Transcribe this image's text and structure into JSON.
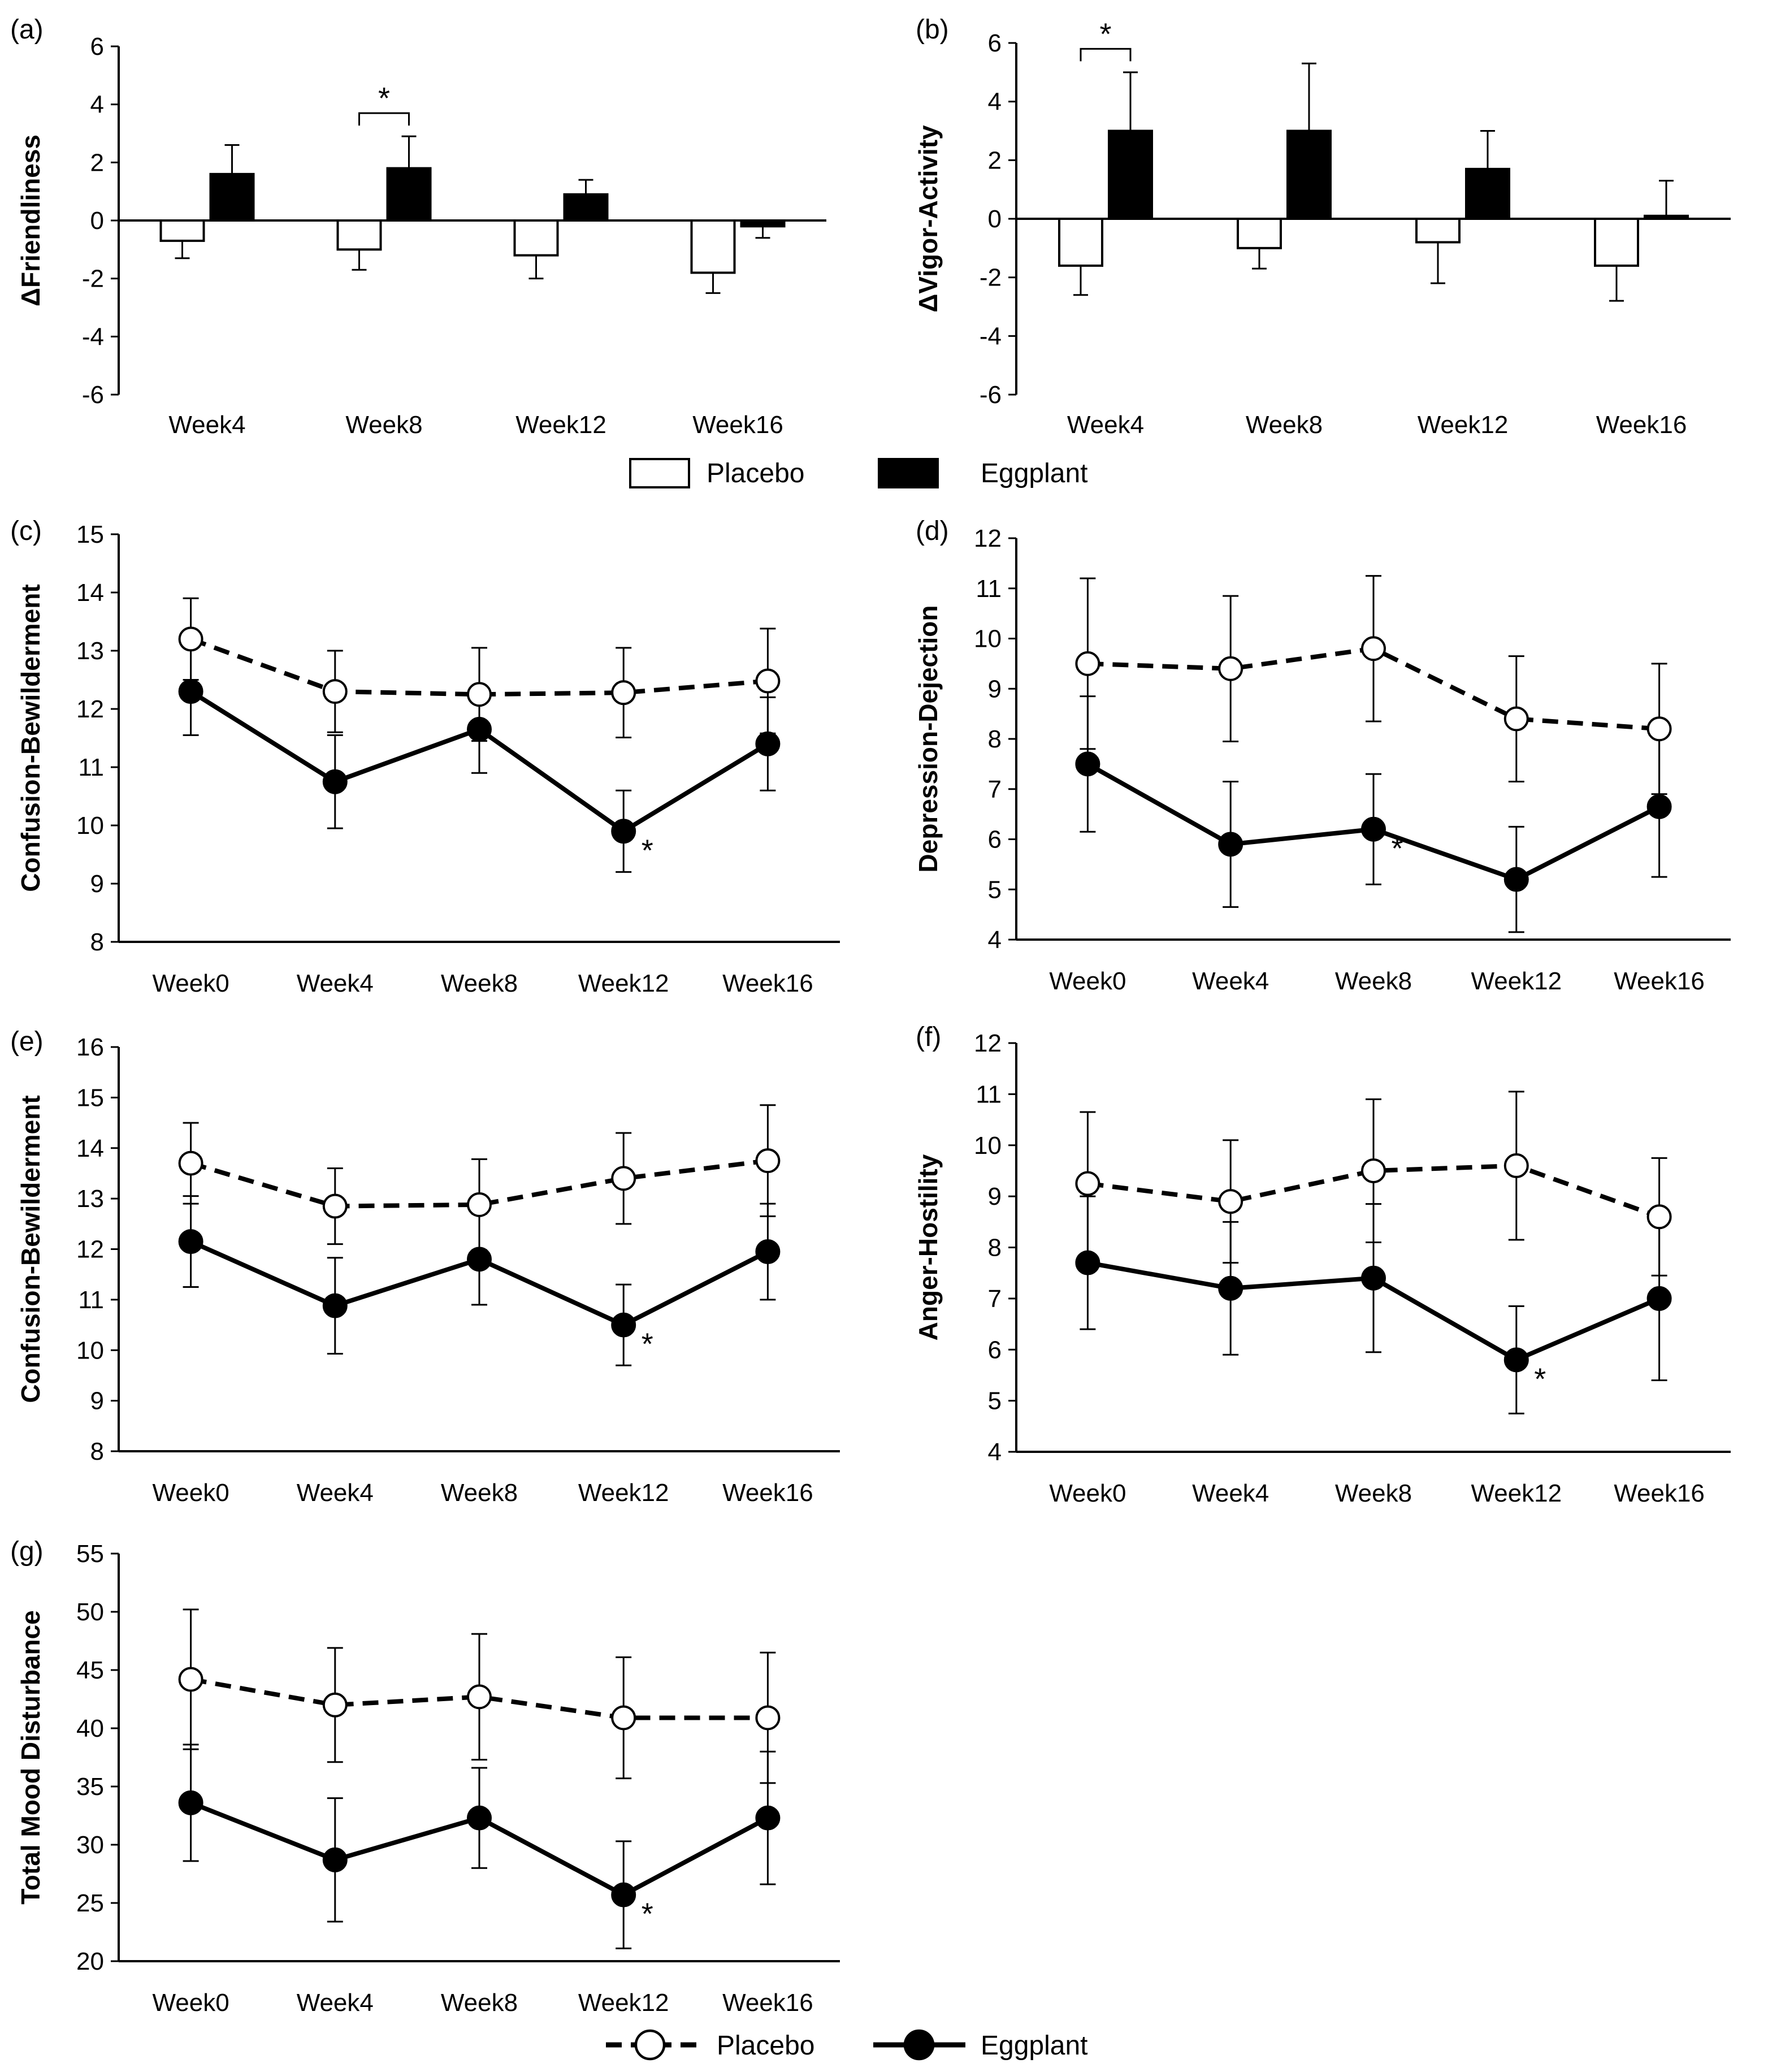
{
  "legend_bar": {
    "placebo": "Placebo",
    "eggplant": "Eggplant"
  },
  "legend_line": {
    "placebo": "Placebo",
    "eggplant": "Eggplant"
  },
  "chart_data": [
    {
      "id": "a",
      "panel_label": "(a)",
      "type": "bar",
      "ylabel": "ΔFriendliness",
      "categories": [
        "Week4",
        "Week8",
        "Week12",
        "Week16"
      ],
      "ylim": [
        -6,
        6
      ],
      "yticks": [
        -6,
        -4,
        -2,
        0,
        2,
        4,
        6
      ],
      "series": [
        {
          "name": "Placebo",
          "values": [
            -0.7,
            -1.0,
            -1.2,
            -1.8
          ],
          "errors": [
            0.6,
            0.7,
            0.8,
            0.7
          ]
        },
        {
          "name": "Eggplant",
          "values": [
            1.6,
            1.8,
            0.9,
            -0.2
          ],
          "errors": [
            1.0,
            1.1,
            0.5,
            0.4
          ]
        }
      ],
      "significance": [
        {
          "category": "Week8",
          "label": "*"
        }
      ]
    },
    {
      "id": "b",
      "panel_label": "(b)",
      "type": "bar",
      "ylabel": "ΔVigor-Activity",
      "categories": [
        "Week4",
        "Week8",
        "Week12",
        "Week16"
      ],
      "ylim": [
        -6,
        6
      ],
      "yticks": [
        -6,
        -4,
        -2,
        0,
        2,
        4,
        6
      ],
      "series": [
        {
          "name": "Placebo",
          "values": [
            -1.6,
            -1.0,
            -0.8,
            -1.6
          ],
          "errors": [
            1.0,
            0.7,
            1.4,
            1.2
          ]
        },
        {
          "name": "Eggplant",
          "values": [
            3.0,
            3.0,
            1.7,
            0.1
          ],
          "errors": [
            2.0,
            2.3,
            1.3,
            1.2
          ]
        }
      ],
      "significance": [
        {
          "category": "Week4",
          "label": "*"
        }
      ]
    },
    {
      "id": "c",
      "panel_label": "(c)",
      "type": "line",
      "ylabel": "Confusion-Bewilderment",
      "categories": [
        "Week0",
        "Week4",
        "Week8",
        "Week12",
        "Week16"
      ],
      "ylim": [
        8,
        15
      ],
      "yticks": [
        8,
        9,
        10,
        11,
        12,
        13,
        14,
        15
      ],
      "series": [
        {
          "name": "Placebo",
          "values": [
            13.2,
            12.3,
            12.25,
            12.28,
            12.48
          ],
          "errors": [
            0.7,
            0.7,
            0.8,
            0.77,
            0.9
          ]
        },
        {
          "name": "Eggplant",
          "values": [
            12.3,
            10.75,
            11.65,
            9.9,
            11.4
          ],
          "errors": [
            0.75,
            0.8,
            0.75,
            0.7,
            0.8
          ]
        }
      ],
      "significance": [
        {
          "category": "Week12",
          "label": "*"
        }
      ]
    },
    {
      "id": "d",
      "panel_label": "(d)",
      "type": "line",
      "ylabel": "Depression-Dejection",
      "categories": [
        "Week0",
        "Week4",
        "Week8",
        "Week12",
        "Week16"
      ],
      "ylim": [
        4,
        12
      ],
      "yticks": [
        4,
        5,
        6,
        7,
        8,
        9,
        10,
        11,
        12
      ],
      "series": [
        {
          "name": "Placebo",
          "values": [
            9.5,
            9.4,
            9.8,
            8.4,
            8.2
          ],
          "errors": [
            1.7,
            1.45,
            1.45,
            1.25,
            1.3
          ]
        },
        {
          "name": "Eggplant",
          "values": [
            7.5,
            5.9,
            6.2,
            5.2,
            6.65
          ],
          "errors": [
            1.35,
            1.25,
            1.1,
            1.05,
            1.4
          ]
        }
      ],
      "significance": [
        {
          "category": "Week8",
          "label": "*"
        }
      ]
    },
    {
      "id": "e",
      "panel_label": "(e)",
      "type": "line",
      "ylabel": "Confusion-Bewilderment",
      "categories": [
        "Week0",
        "Week4",
        "Week8",
        "Week12",
        "Week16"
      ],
      "ylim": [
        8,
        16
      ],
      "yticks": [
        8,
        9,
        10,
        11,
        12,
        13,
        14,
        15,
        16
      ],
      "series": [
        {
          "name": "Placebo",
          "values": [
            13.7,
            12.85,
            12.88,
            13.4,
            13.75
          ],
          "errors": [
            0.8,
            0.75,
            0.9,
            0.9,
            1.1
          ]
        },
        {
          "name": "Eggplant",
          "values": [
            12.15,
            10.88,
            11.8,
            10.5,
            11.95
          ],
          "errors": [
            0.9,
            0.95,
            0.9,
            0.8,
            0.95
          ]
        }
      ],
      "significance": [
        {
          "category": "Week12",
          "label": "*"
        }
      ]
    },
    {
      "id": "f",
      "panel_label": "(f)",
      "type": "line",
      "ylabel": "Anger-Hostility",
      "categories": [
        "Week0",
        "Week4",
        "Week8",
        "Week12",
        "Week16"
      ],
      "ylim": [
        4,
        12
      ],
      "yticks": [
        4,
        5,
        6,
        7,
        8,
        9,
        10,
        11,
        12
      ],
      "series": [
        {
          "name": "Placebo",
          "values": [
            9.25,
            8.9,
            9.5,
            9.6,
            8.6
          ],
          "errors": [
            1.4,
            1.2,
            1.4,
            1.45,
            1.15
          ]
        },
        {
          "name": "Eggplant",
          "values": [
            7.7,
            7.2,
            7.4,
            5.8,
            7.0
          ],
          "errors": [
            1.3,
            1.3,
            1.45,
            1.05,
            1.6
          ]
        }
      ],
      "significance": [
        {
          "category": "Week12",
          "label": "*"
        }
      ]
    },
    {
      "id": "g",
      "panel_label": "(g)",
      "type": "line",
      "ylabel": "Total Mood Disturbance",
      "categories": [
        "Week0",
        "Week4",
        "Week8",
        "Week12",
        "Week16"
      ],
      "ylim": [
        20,
        55
      ],
      "yticks": [
        20,
        25,
        30,
        35,
        40,
        45,
        50,
        55
      ],
      "series": [
        {
          "name": "Placebo",
          "values": [
            44.2,
            42.0,
            42.7,
            40.9,
            40.9
          ],
          "errors": [
            6.0,
            4.9,
            5.4,
            5.2,
            5.6
          ]
        },
        {
          "name": "Eggplant",
          "values": [
            33.6,
            28.7,
            32.3,
            25.7,
            32.3
          ],
          "errors": [
            5.0,
            5.3,
            4.3,
            4.6,
            5.7
          ]
        }
      ],
      "significance": [
        {
          "category": "Week12",
          "label": "*"
        }
      ]
    }
  ]
}
